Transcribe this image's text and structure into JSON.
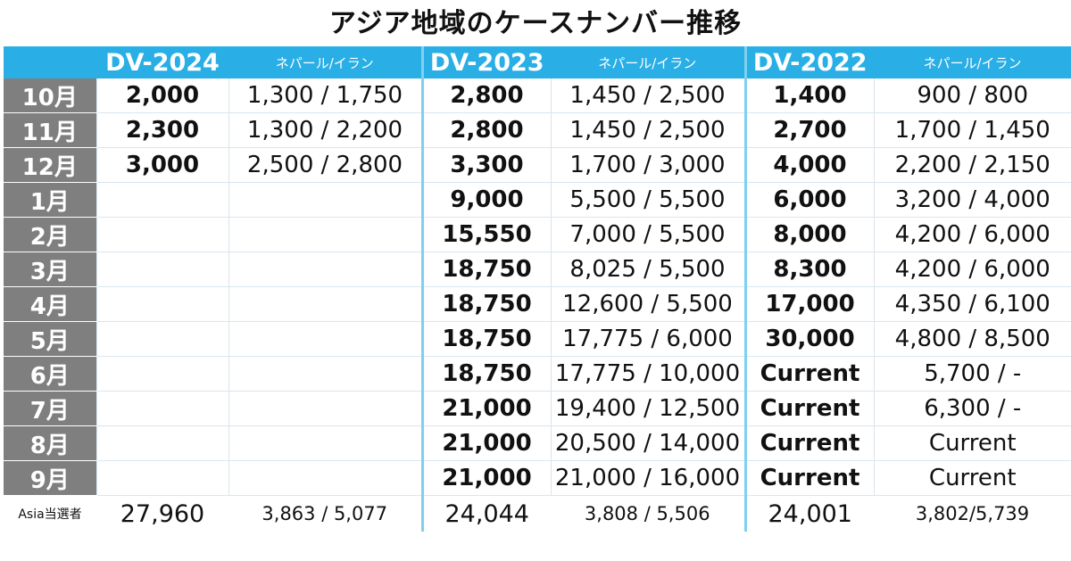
{
  "title": "アジア地域のケースナンバー推移",
  "header": {
    "cols": [
      {
        "year": "DV-2024",
        "sub": "ネパール/イラン"
      },
      {
        "year": "DV-2023",
        "sub": "ネパール/イラン"
      },
      {
        "year": "DV-2022",
        "sub": "ネパール/イラン"
      }
    ]
  },
  "rows": [
    {
      "month": "10月",
      "c": [
        "2,000",
        "1,300 / 1,750",
        "2,800",
        "1,450 / 2,500",
        "1,400",
        "900 / 800"
      ]
    },
    {
      "month": "11月",
      "c": [
        "2,300",
        "1,300 / 2,200",
        "2,800",
        "1,450 / 2,500",
        "2,700",
        "1,700 / 1,450"
      ]
    },
    {
      "month": "12月",
      "c": [
        "3,000",
        "2,500 / 2,800",
        "3,300",
        "1,700 / 3,000",
        "4,000",
        "2,200 / 2,150"
      ]
    },
    {
      "month": "1月",
      "c": [
        "",
        "",
        "9,000",
        "5,500 / 5,500",
        "6,000",
        "3,200 / 4,000"
      ]
    },
    {
      "month": "2月",
      "c": [
        "",
        "",
        "15,550",
        "7,000 / 5,500",
        "8,000",
        "4,200 / 6,000"
      ]
    },
    {
      "month": "3月",
      "c": [
        "",
        "",
        "18,750",
        "8,025 / 5,500",
        "8,300",
        "4,200 / 6,000"
      ]
    },
    {
      "month": "4月",
      "c": [
        "",
        "",
        "18,750",
        "12,600 / 5,500",
        "17,000",
        "4,350 / 6,100"
      ]
    },
    {
      "month": "5月",
      "c": [
        "",
        "",
        "18,750",
        "17,775 / 6,000",
        "30,000",
        "4,800 / 8,500"
      ]
    },
    {
      "month": "6月",
      "c": [
        "",
        "",
        "18,750",
        "17,775 / 10,000",
        "Current",
        "5,700 /   -"
      ]
    },
    {
      "month": "7月",
      "c": [
        "",
        "",
        "21,000",
        "19,400 / 12,500",
        "Current",
        "6,300 /   -"
      ]
    },
    {
      "month": "8月",
      "c": [
        "",
        "",
        "21,000",
        "20,500 / 14,000",
        "Current",
        "Current"
      ]
    },
    {
      "month": "9月",
      "c": [
        "",
        "",
        "21,000",
        "21,000 / 16,000",
        "Current",
        "Current"
      ]
    }
  ],
  "footer": {
    "label": "Asia当選者",
    "c": [
      "27,960",
      "3,863 / 5,077",
      "24,044",
      "3,808 / 5,506",
      "24,001",
      "3,802/5,739"
    ]
  }
}
